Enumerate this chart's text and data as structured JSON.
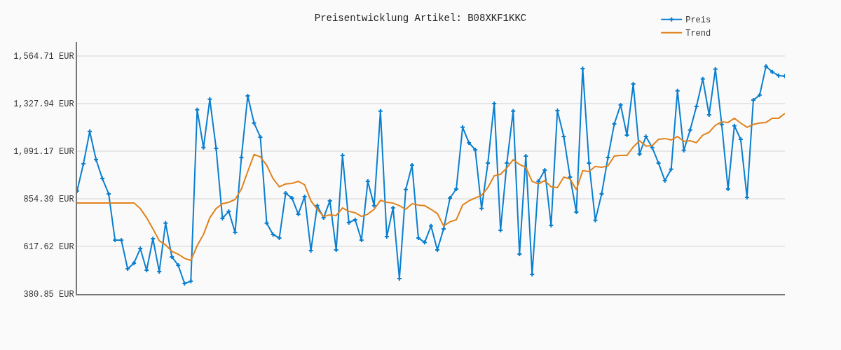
{
  "chart_data": {
    "type": "line",
    "title": "Preisentwicklung Artikel: B08XKF1KKC",
    "categories": [
      null,
      null,
      null,
      null,
      null,
      null,
      null,
      null,
      null,
      null,
      null,
      null,
      null,
      null,
      null,
      null,
      null,
      null,
      null,
      null,
      null,
      null,
      null,
      null,
      null,
      null,
      null,
      null,
      null,
      null,
      null,
      null,
      null,
      null,
      null,
      null,
      null,
      null,
      null,
      null,
      null,
      null,
      null,
      null,
      null,
      null,
      null,
      null,
      null,
      null,
      null,
      null,
      null,
      null,
      null,
      null,
      null,
      null,
      null,
      null,
      null,
      null,
      null,
      null,
      null,
      null,
      null,
      null,
      null,
      null,
      null,
      null,
      null,
      null,
      null,
      null,
      null,
      null,
      null,
      null,
      null,
      null,
      null,
      null,
      null,
      null,
      null,
      null,
      null,
      null,
      null,
      null,
      null,
      null,
      null,
      null,
      null,
      null,
      null,
      null,
      null,
      null,
      null,
      null,
      null,
      null,
      null,
      null,
      null,
      null,
      null,
      null,
      null
    ],
    "series": [
      {
        "name": "Preis",
        "color": "#0a7fcf",
        "marker": "cross",
        "values": [
          893,
          1028,
          1189,
          1049,
          955,
          879,
          649,
          649,
          506,
          534,
          607,
          499,
          656,
          492,
          733,
          565,
          524,
          433,
          444,
          1297,
          1109,
          1349,
          1105,
          757,
          792,
          687,
          1060,
          1366,
          1231,
          1161,
          733,
          677,
          659,
          882,
          858,
          778,
          865,
          597,
          820,
          760,
          844,
          600,
          1070,
          736,
          750,
          649,
          941,
          820,
          1290,
          666,
          809,
          457,
          900,
          1021,
          659,
          638,
          719,
          600,
          705,
          858,
          903,
          1210,
          1133,
          1098,
          806,
          1032,
          1328,
          698,
          1032,
          1290,
          579,
          1067,
          478,
          941,
          997,
          722,
          1293,
          1164,
          962,
          788,
          1502,
          1032,
          747,
          879,
          1060,
          1227,
          1321,
          1171,
          1425,
          1077,
          1164,
          1109,
          1032,
          945,
          1001,
          1391,
          1095,
          1196,
          1314,
          1450,
          1272,
          1499,
          1224,
          903,
          1217,
          1150,
          861,
          1345,
          1370,
          1513,
          1485,
          1467,
          1464
        ]
      },
      {
        "name": "Trend",
        "color": "#e0821c",
        "values": [
          833,
          833,
          833,
          833,
          833,
          833,
          833,
          833,
          833,
          833,
          806,
          760,
          705,
          646,
          625,
          593,
          579,
          558,
          548,
          621,
          677,
          760,
          806,
          830,
          837,
          851,
          903,
          990,
          1074,
          1063,
          1021,
          955,
          914,
          928,
          931,
          941,
          924,
          844,
          802,
          767,
          774,
          771,
          809,
          792,
          785,
          767,
          778,
          802,
          847,
          837,
          833,
          820,
          802,
          830,
          823,
          820,
          802,
          781,
          719,
          740,
          750,
          823,
          844,
          858,
          872,
          910,
          969,
          976,
          1008,
          1049,
          1025,
          1011,
          941,
          928,
          945,
          914,
          910,
          962,
          952,
          900,
          994,
          990,
          1015,
          1011,
          1018,
          1067,
          1070,
          1070,
          1112,
          1143,
          1116,
          1119,
          1150,
          1154,
          1147,
          1164,
          1140,
          1143,
          1133,
          1171,
          1185,
          1220,
          1237,
          1234,
          1255,
          1231,
          1210,
          1224,
          1231,
          1234,
          1255,
          1255,
          1279
        ]
      }
    ],
    "ylim": [
      380.85,
      1634
    ],
    "yticks": [
      {
        "value": 380.85,
        "label": "380.85 EUR"
      },
      {
        "value": 617.62,
        "label": "617.62 EUR"
      },
      {
        "value": 854.39,
        "label": "854.39 EUR"
      },
      {
        "value": 1091.17,
        "label": "1,091.17 EUR"
      },
      {
        "value": 1327.94,
        "label": "1,327.94 EUR"
      },
      {
        "value": 1564.71,
        "label": "1,564.71 EUR"
      }
    ],
    "grid": "y",
    "legend": "top right",
    "tick_labels": "y"
  }
}
